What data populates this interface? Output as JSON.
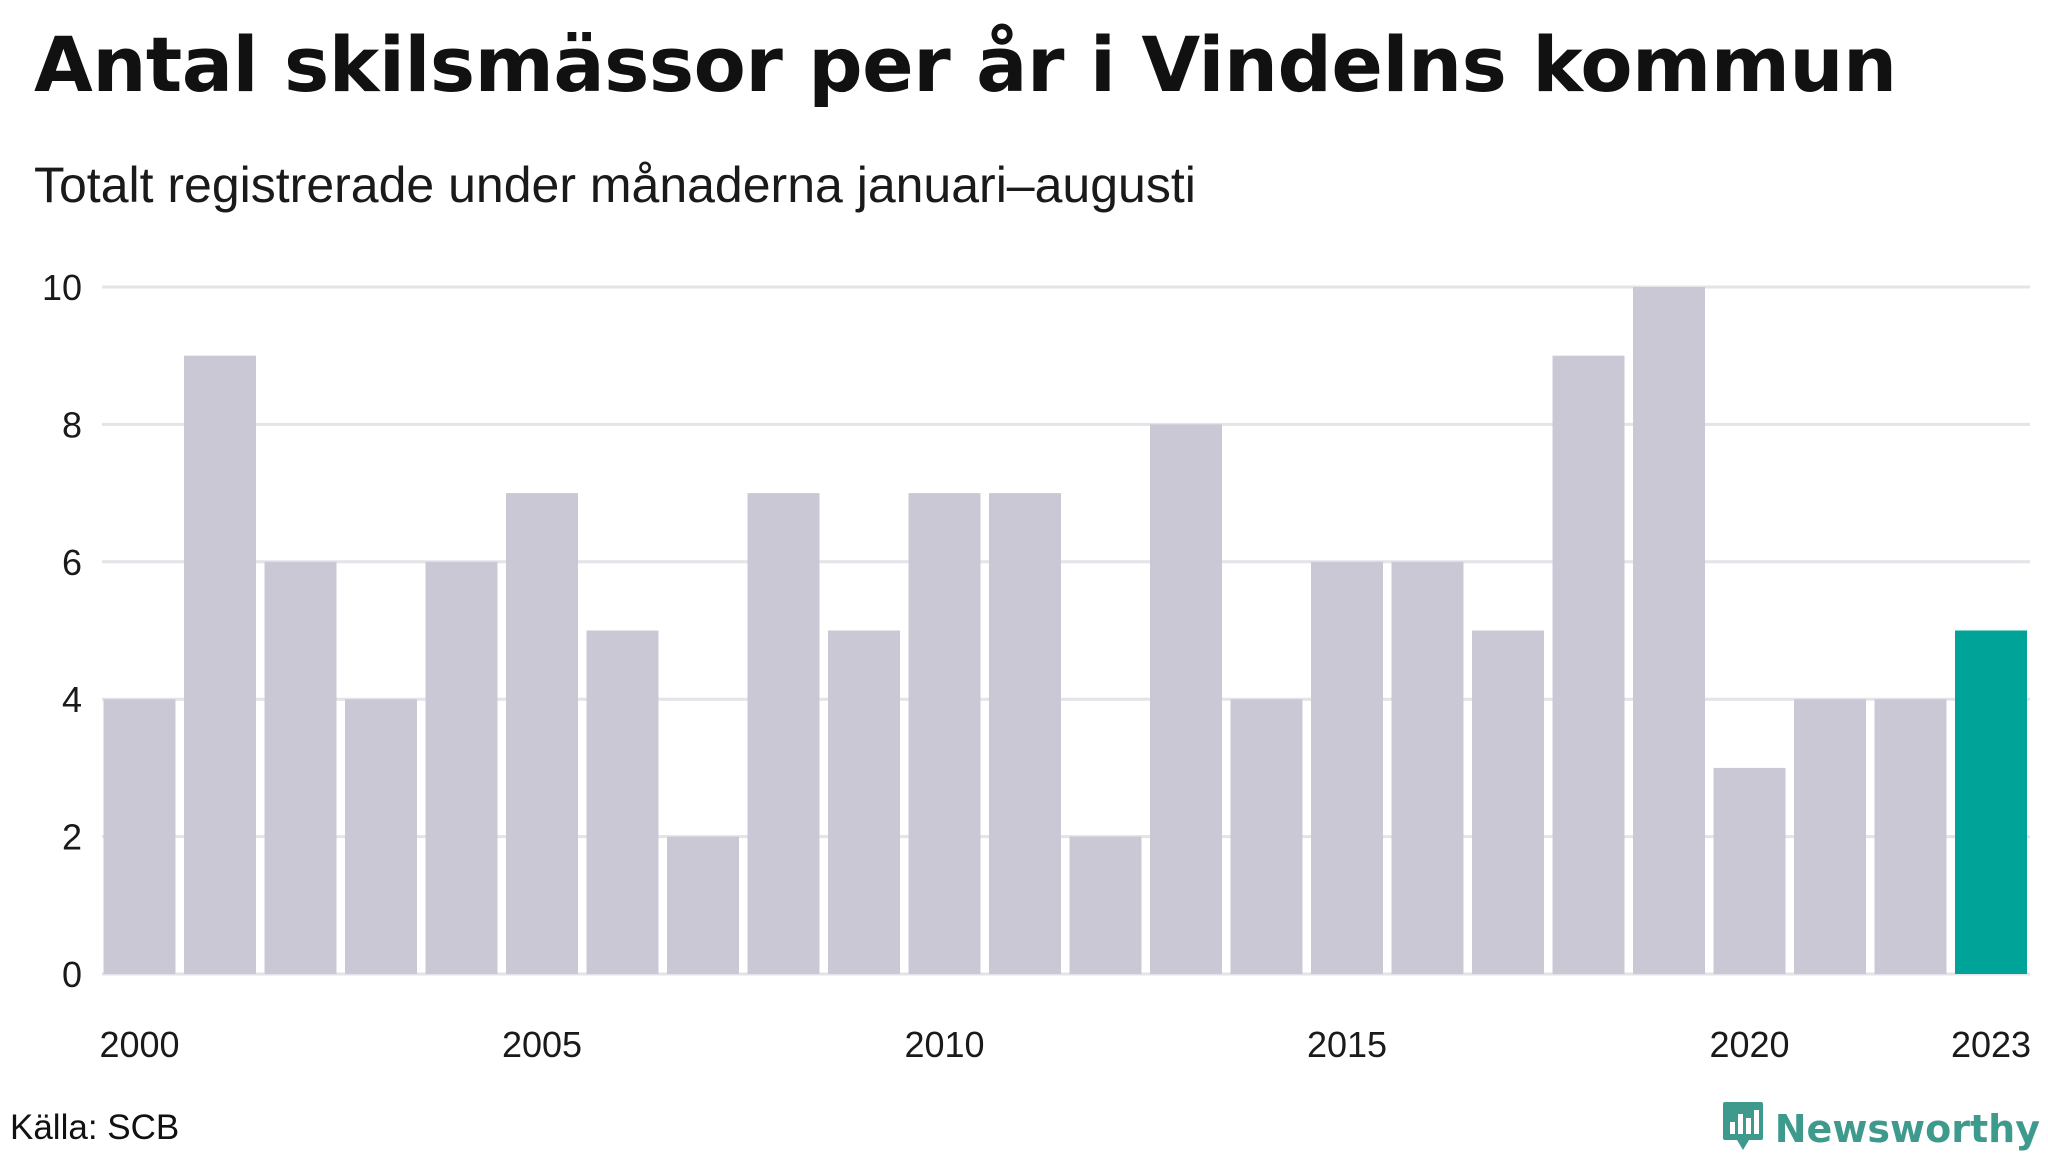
{
  "title": "Antal skilsmässor per år i Vindelns kommun",
  "subtitle": "Totalt registrerade under månaderna januari–augusti",
  "source": "Källa: SCB",
  "brand": {
    "label": "Newsworthy",
    "icon": "newsworthy-logo-icon",
    "color": "#3f9a8e"
  },
  "chart_data": {
    "type": "bar",
    "categories": [
      "2000",
      "2001",
      "2002",
      "2003",
      "2004",
      "2005",
      "2006",
      "2007",
      "2008",
      "2009",
      "2010",
      "2011",
      "2012",
      "2013",
      "2014",
      "2015",
      "2016",
      "2017",
      "2018",
      "2019",
      "2020",
      "2021",
      "2022",
      "2023"
    ],
    "values": [
      4,
      9,
      6,
      4,
      6,
      7,
      5,
      2,
      7,
      5,
      7,
      7,
      2,
      8,
      4,
      6,
      6,
      5,
      9,
      10,
      3,
      4,
      4,
      5
    ],
    "x_tick_labels": [
      "2000",
      "2005",
      "2010",
      "2015",
      "2020",
      "2023"
    ],
    "y_ticks": [
      0,
      2,
      4,
      6,
      8,
      10
    ],
    "ylim": [
      0,
      10
    ],
    "grid": "horizontal",
    "bar_color": "#c9c8d4",
    "highlight_category": "2023",
    "highlight_color": "#00a398",
    "xlabel": "",
    "ylabel": ""
  }
}
